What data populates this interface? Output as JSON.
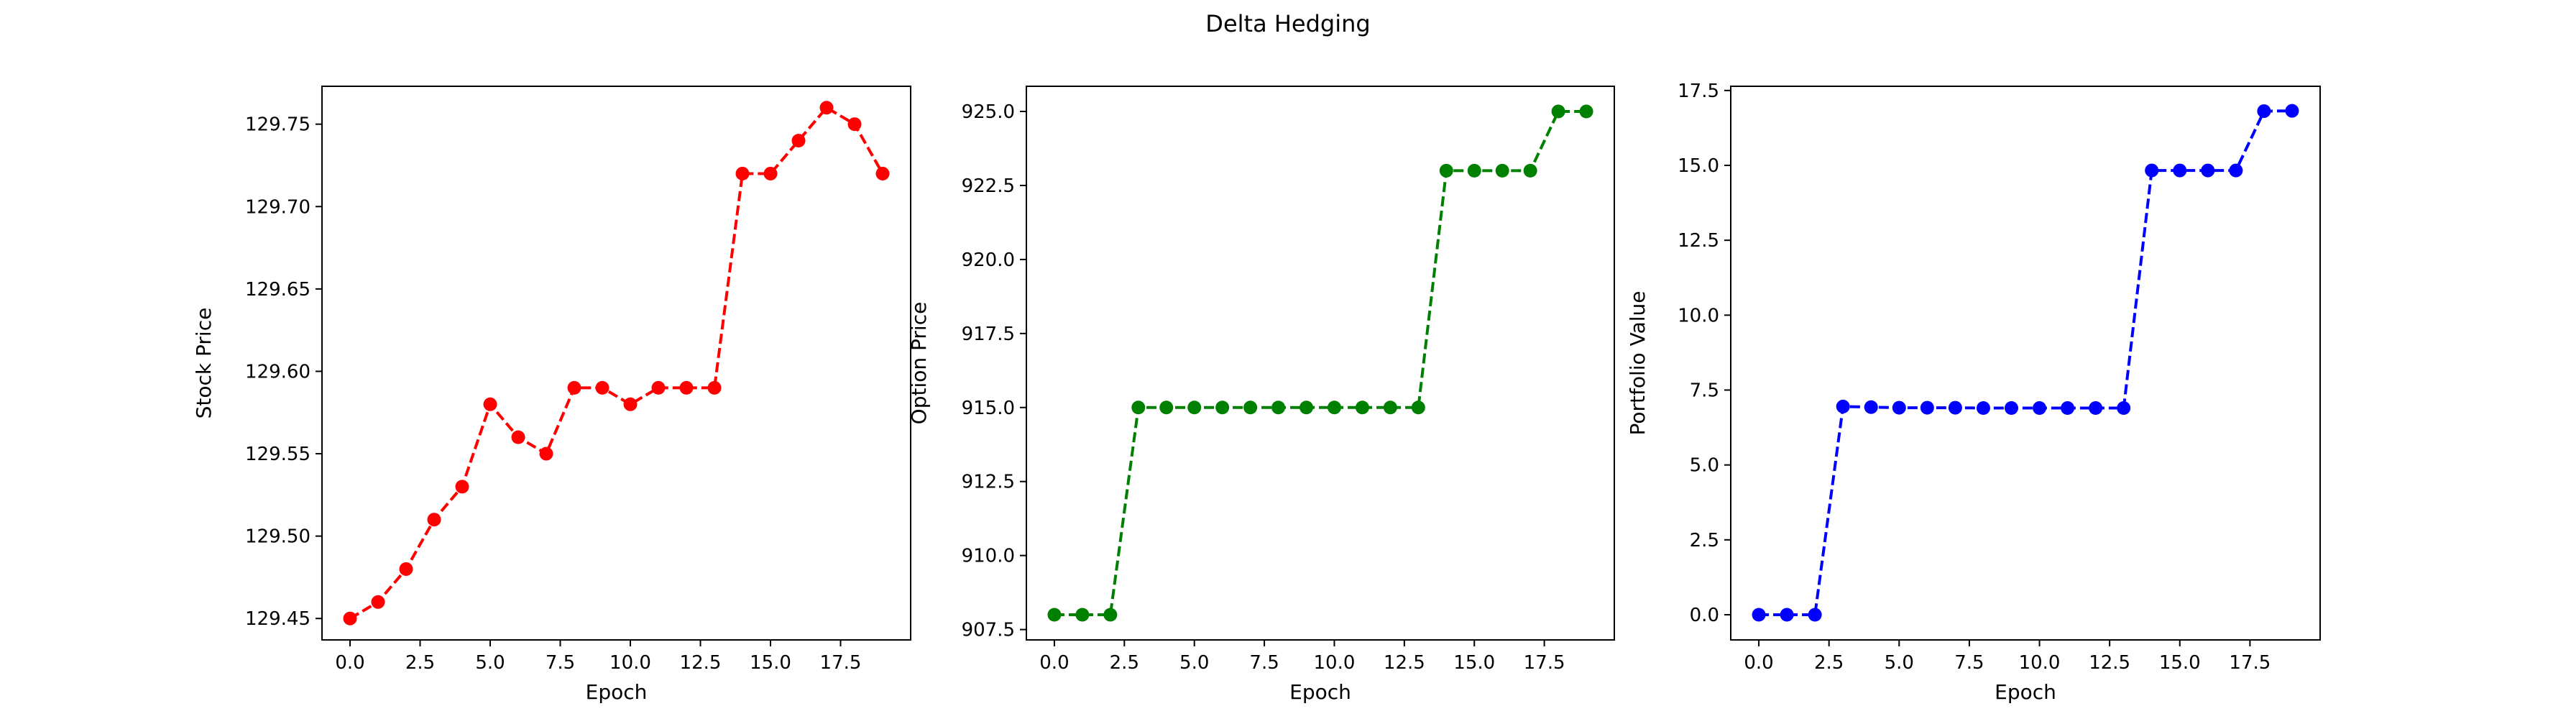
{
  "figure": {
    "suptitle": "Delta Hedging"
  },
  "chart_data": [
    {
      "type": "line",
      "title": "",
      "xlabel": "Epoch",
      "ylabel": "Stock Price",
      "xlim": [
        -1.0,
        20.0
      ],
      "ylim": [
        129.437,
        129.773
      ],
      "xticks": [
        0.0,
        2.5,
        5.0,
        7.5,
        10.0,
        12.5,
        15.0,
        17.5
      ],
      "xtick_labels": [
        "0.0",
        "2.5",
        "5.0",
        "7.5",
        "10.0",
        "12.5",
        "15.0",
        "17.5"
      ],
      "yticks": [
        129.45,
        129.5,
        129.55,
        129.6,
        129.65,
        129.7,
        129.75
      ],
      "ytick_labels": [
        "129.45",
        "129.50",
        "129.55",
        "129.60",
        "129.65",
        "129.70",
        "129.75"
      ],
      "grid": false,
      "series": [
        {
          "color": "#ff0000",
          "linestyle": "dashed",
          "marker": "circle",
          "x": [
            0,
            1,
            2,
            3,
            4,
            5,
            6,
            7,
            8,
            9,
            10,
            11,
            12,
            13,
            14,
            15,
            16,
            17,
            18,
            19
          ],
          "y": [
            129.45,
            129.46,
            129.48,
            129.51,
            129.53,
            129.58,
            129.56,
            129.55,
            129.59,
            129.59,
            129.58,
            129.59,
            129.59,
            129.59,
            129.72,
            129.72,
            129.74,
            129.76,
            129.75,
            129.72
          ]
        }
      ]
    },
    {
      "type": "line",
      "title": "",
      "xlabel": "Epoch",
      "ylabel": "Option Price",
      "xlim": [
        -1.0,
        20.0
      ],
      "ylim": [
        907.15,
        925.85
      ],
      "xticks": [
        0.0,
        2.5,
        5.0,
        7.5,
        10.0,
        12.5,
        15.0,
        17.5
      ],
      "xtick_labels": [
        "0.0",
        "2.5",
        "5.0",
        "7.5",
        "10.0",
        "12.5",
        "15.0",
        "17.5"
      ],
      "yticks": [
        907.5,
        910.0,
        912.5,
        915.0,
        917.5,
        920.0,
        922.5,
        925.0
      ],
      "ytick_labels": [
        "907.5",
        "910.0",
        "912.5",
        "915.0",
        "917.5",
        "920.0",
        "922.5",
        "925.0"
      ],
      "grid": false,
      "series": [
        {
          "color": "#008000",
          "linestyle": "dashed",
          "marker": "circle",
          "x": [
            0,
            1,
            2,
            3,
            4,
            5,
            6,
            7,
            8,
            9,
            10,
            11,
            12,
            13,
            14,
            15,
            16,
            17,
            18,
            19
          ],
          "y": [
            908,
            908,
            908,
            915,
            915,
            915,
            915,
            915,
            915,
            915,
            915,
            915,
            915,
            915,
            923,
            923,
            923,
            923,
            925,
            925
          ]
        }
      ]
    },
    {
      "type": "line",
      "title": "",
      "xlabel": "Epoch",
      "ylabel": "Portfolio Value",
      "xlim": [
        -1.0,
        20.0
      ],
      "ylim": [
        -0.84,
        17.64
      ],
      "xticks": [
        0.0,
        2.5,
        5.0,
        7.5,
        10.0,
        12.5,
        15.0,
        17.5
      ],
      "xtick_labels": [
        "0.0",
        "2.5",
        "5.0",
        "7.5",
        "10.0",
        "12.5",
        "15.0",
        "17.5"
      ],
      "yticks": [
        0.0,
        2.5,
        5.0,
        7.5,
        10.0,
        12.5,
        15.0,
        17.5
      ],
      "ytick_labels": [
        "0.0",
        "2.5",
        "5.0",
        "7.5",
        "10.0",
        "12.5",
        "15.0",
        "17.5"
      ],
      "grid": false,
      "series": [
        {
          "color": "#0000ff",
          "linestyle": "dashed",
          "marker": "circle",
          "x": [
            0,
            1,
            2,
            3,
            4,
            5,
            6,
            7,
            8,
            9,
            10,
            11,
            12,
            13,
            14,
            15,
            16,
            17,
            18,
            19
          ],
          "y": [
            0.0,
            0.0,
            0.0,
            6.95,
            6.93,
            6.91,
            6.91,
            6.91,
            6.9,
            6.9,
            6.9,
            6.9,
            6.9,
            6.9,
            14.83,
            14.83,
            14.83,
            14.83,
            16.81,
            16.82
          ]
        }
      ]
    }
  ]
}
